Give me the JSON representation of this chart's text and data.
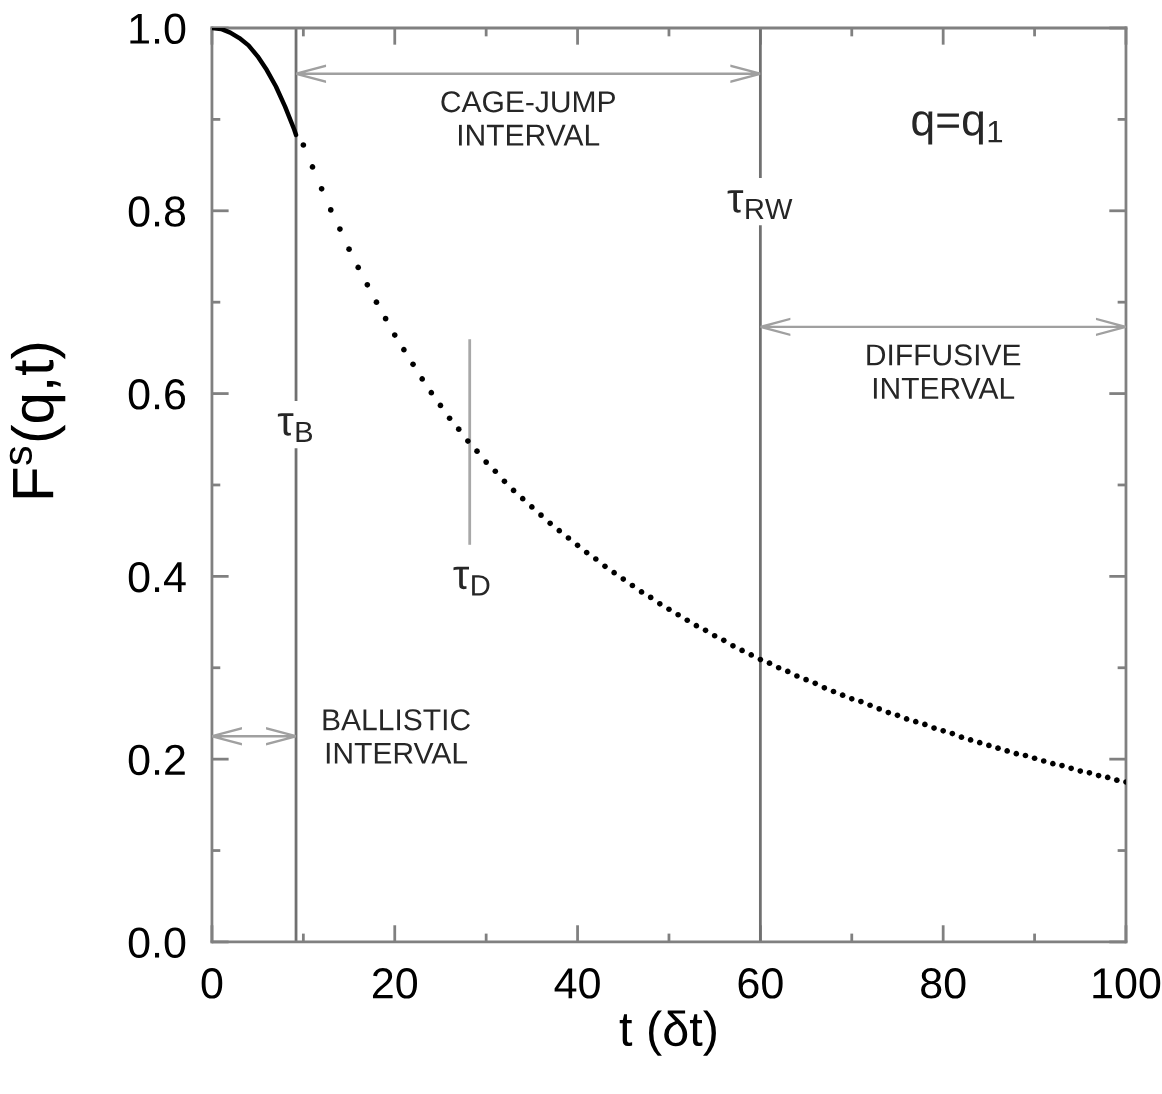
{
  "chart_data": {
    "type": "line",
    "xlabel": "t (δt)",
    "ylabel": "F$^{s}$(q,t)",
    "series": [
      {
        "line_style": "solid",
        "color": "#000000",
        "x": [
          0,
          1,
          2,
          3,
          4,
          5,
          6,
          7,
          8,
          9,
          9.2
        ],
        "values": [
          1.0,
          0.999,
          0.995,
          0.989,
          0.981,
          0.969,
          0.954,
          0.936,
          0.914,
          0.889,
          0.883
        ]
      },
      {
        "type": "scatter",
        "color": "#000000",
        "x": [
          10,
          11,
          12,
          13,
          14,
          15,
          16,
          17,
          18,
          19,
          20,
          21,
          22,
          23,
          24,
          25,
          26,
          27,
          28,
          29,
          30,
          31,
          32,
          33,
          34,
          35,
          36,
          37,
          38,
          39,
          40,
          41,
          42,
          43,
          44,
          45,
          46,
          47,
          48,
          49,
          50,
          51,
          52,
          53,
          54,
          55,
          56,
          57,
          58,
          59,
          60,
          61,
          62,
          63,
          64,
          65,
          66,
          67,
          68,
          69,
          70,
          71,
          72,
          73,
          74,
          75,
          76,
          77,
          78,
          79,
          80,
          81,
          82,
          83,
          84,
          85,
          86,
          87,
          88,
          89,
          90,
          91,
          92,
          93,
          94,
          95,
          96,
          97,
          98,
          99,
          100
        ],
        "values": [
          0.872,
          0.848,
          0.824,
          0.801,
          0.78,
          0.758,
          0.738,
          0.719,
          0.7,
          0.682,
          0.664,
          0.648,
          0.632,
          0.616,
          0.601,
          0.587,
          0.573,
          0.561,
          0.548,
          0.537,
          0.525,
          0.515,
          0.504,
          0.494,
          0.485,
          0.476,
          0.467,
          0.458,
          0.45,
          0.442,
          0.434,
          0.426,
          0.419,
          0.411,
          0.404,
          0.397,
          0.39,
          0.383,
          0.377,
          0.37,
          0.364,
          0.358,
          0.352,
          0.346,
          0.341,
          0.335,
          0.33,
          0.324,
          0.319,
          0.314,
          0.309,
          0.305,
          0.3,
          0.296,
          0.291,
          0.287,
          0.283,
          0.278,
          0.274,
          0.27,
          0.266,
          0.263,
          0.259,
          0.255,
          0.251,
          0.248,
          0.244,
          0.241,
          0.238,
          0.234,
          0.231,
          0.228,
          0.224,
          0.221,
          0.218,
          0.215,
          0.212,
          0.209,
          0.206,
          0.204,
          0.201,
          0.198,
          0.195,
          0.193,
          0.19,
          0.187,
          0.185,
          0.182,
          0.18,
          0.177,
          0.175
        ]
      }
    ],
    "xlim": [
      0,
      100
    ],
    "xticks": [
      0,
      {
        "value": 10,
        "label": null
      },
      20,
      {
        "value": 30,
        "label": null
      },
      40,
      {
        "value": 50,
        "label": null
      },
      60,
      {
        "value": 70,
        "label": null
      },
      80,
      {
        "value": 90,
        "label": null
      },
      100
    ],
    "ylim": [
      0,
      1
    ],
    "yticks": [
      {
        "value": 0,
        "label": "0.0"
      },
      {
        "value": 0.1,
        "label": null
      },
      {
        "value": 0.2,
        "label": "0.2"
      },
      {
        "value": 0.3,
        "label": null
      },
      {
        "value": 0.4,
        "label": "0.4"
      },
      {
        "value": 0.5,
        "label": null
      },
      {
        "value": 0.6,
        "label": "0.6"
      },
      {
        "value": 0.7,
        "label": null
      },
      {
        "value": 0.8,
        "label": "0.8"
      },
      {
        "value": 0.9,
        "label": null
      },
      {
        "value": 1.0,
        "label": "1.0"
      }
    ],
    "ref_lines": [
      {
        "axis": "x",
        "value": 9.2,
        "label": "τ$_{B}$",
        "color": "#707070"
      },
      {
        "axis": "x",
        "value": 60,
        "label": "τ$_{RW}$",
        "color": "#707070"
      }
    ],
    "annotations": [
      "BALLISTIC\nINTERVAL",
      "CAGE-JUMP\nINTERVAL",
      "DIFFUSIVE\nINTERVAL",
      "q=q$_{1}$",
      {
        "text": "τ$_{D}$",
        "x": 28.2,
        "y": 0.547
      }
    ]
  }
}
